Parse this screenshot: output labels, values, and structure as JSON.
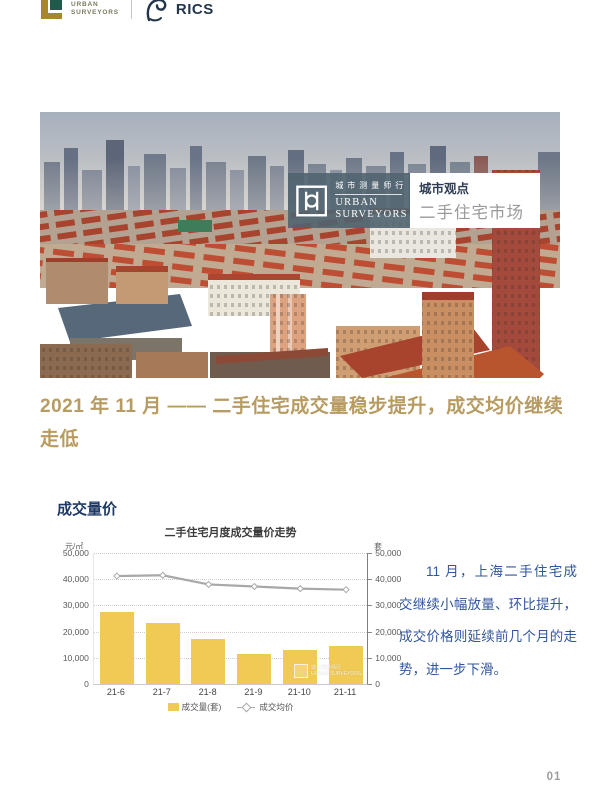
{
  "header": {
    "brand": {
      "line1": "URBAN",
      "line2": "SURVEYORS"
    },
    "partner": "RICS"
  },
  "hero": {
    "badge": {
      "logo_cn": "城市测量师行",
      "logo_en_1": "Urban",
      "logo_en_2": "Surveyors",
      "column_title": "城市观点",
      "column_topic": "二手住宅市场"
    }
  },
  "headline": "2021 年 11 月 —— 二手住宅成交量稳步提升，成交均价继续走低",
  "section": {
    "title": "成交量价"
  },
  "chart_data": {
    "type": "bar",
    "title": "二手住宅月度成交量价走势",
    "categories": [
      "21-6",
      "21-7",
      "21-8",
      "21-9",
      "21-10",
      "21-11"
    ],
    "series": [
      {
        "name": "成交量(套)",
        "type": "bar",
        "axis": "right",
        "unit": "套",
        "color": "#f0ca55",
        "values": [
          27500,
          23400,
          17300,
          11600,
          12900,
          14600
        ]
      },
      {
        "name": "成交均价",
        "type": "line",
        "axis": "left",
        "unit": "元/㎡",
        "color": "#a8a8a8",
        "values": [
          41200,
          41500,
          38000,
          37200,
          36400,
          36000
        ]
      }
    ],
    "left_axis": {
      "unit": "元/㎡",
      "min": 0,
      "max": 50000,
      "tick_labels": [
        "50,000",
        "40,000",
        "30,000",
        "20,000",
        "10,000",
        "0"
      ]
    },
    "right_axis": {
      "unit": "套",
      "min": 0,
      "max": 50000,
      "tick_labels": [
        "50,000",
        "40,000",
        "30,000",
        "20,000",
        "10,000",
        "0"
      ]
    },
    "grid": "horizontal-dotted",
    "legend_position": "bottom",
    "watermark": {
      "cn": "城市测量师行",
      "en": "URBAN SURVEYORS"
    }
  },
  "commentary": "11 月，上海二手住宅成交继续小幅放量、环比提升，成交价格则延续前几个月的走势，进一步下滑。",
  "footer": {
    "page_number": "01"
  },
  "colors": {
    "headline_gold": "#b79b60",
    "section_navy": "#1f3a68",
    "commentary_blue": "#31569e",
    "bar_yellow": "#f0ca55",
    "line_gray": "#a8a8a8"
  }
}
